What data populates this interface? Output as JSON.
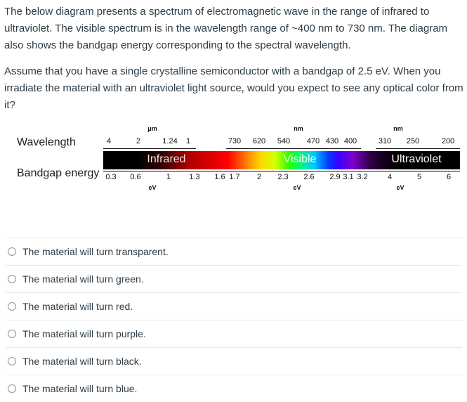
{
  "question": {
    "paragraph1": "The below diagram presents a spectrum of electromagnetic wave in the range of infrared to ultraviolet. The visible spectrum is in the wavelength range of ~400 nm to 730 nm.  The diagram also shows the bandgap energy corresponding to the spectral wavelength.",
    "paragraph2": "Assume that you have a single crystalline semiconductor with a bandgap of 2.5 eV. When you irradiate the material with an ultraviolet light source, would you expect to see any optical color from it?"
  },
  "diagram": {
    "wavelength_label": "Wavelength",
    "bandgap_label": "Bandgap energy",
    "units": {
      "um": "μm",
      "nm1": "nm",
      "nm2": "nm",
      "ev1": "eV",
      "ev2": "eV",
      "ev3": "eV"
    },
    "bands": {
      "infrared": "Infrared",
      "visible": "Visible",
      "ultraviolet": "Ultraviolet"
    },
    "band_colors": {
      "infrared": "#e8e8e8",
      "visible": "#ffffff",
      "ultraviolet": "#ffffff"
    },
    "wavelength_ticks": [
      "4",
      "2",
      "1.24",
      "1",
      "730",
      "620",
      "540",
      "470",
      "430",
      "400",
      "310",
      "250",
      "200"
    ],
    "energy_ticks": [
      "0.3",
      "0.6",
      "1",
      "1.3",
      "1.6",
      "1.7",
      "2",
      "2.3",
      "2.6",
      "2.9",
      "3.1",
      "3.2",
      "4",
      "5",
      "6"
    ]
  },
  "options": [
    "The material will turn transparent.",
    "The material will turn green.",
    "The material will turn red.",
    "The material will turn purple.",
    "The material will turn black.",
    "The material will turn blue."
  ]
}
